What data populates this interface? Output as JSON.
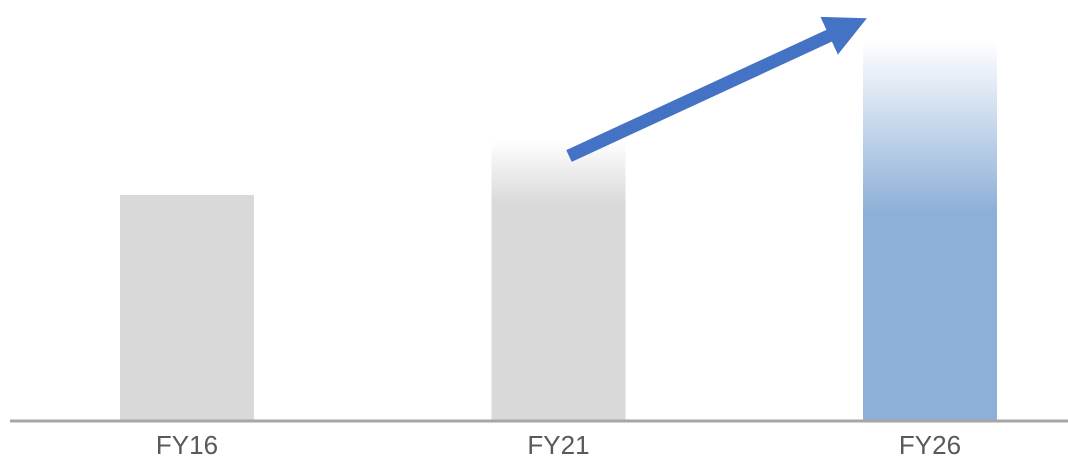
{
  "chart_data": {
    "type": "bar",
    "categories": [
      "FY16",
      "FY21",
      "FY26"
    ],
    "values": [
      225,
      280,
      380
    ],
    "colors": [
      "#d9d9d9",
      "#d9d9d9",
      "#8eb0d8"
    ],
    "ylim": [
      0,
      400
    ]
  }
}
